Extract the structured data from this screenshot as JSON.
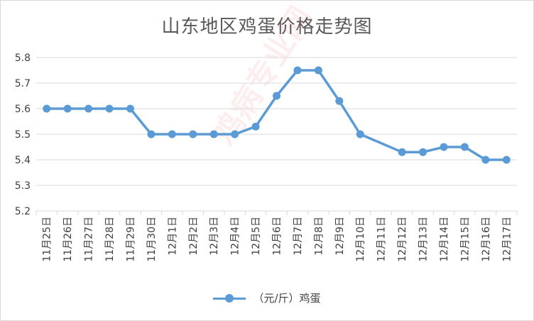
{
  "watermark": "鸡病专业网",
  "chart_data": {
    "type": "line",
    "title": "山东地区鸡蛋价格走势图",
    "categories": [
      "11月25日",
      "11月26日",
      "11月27日",
      "11月28日",
      "11月29日",
      "11月30日",
      "12月1日",
      "12月2日",
      "12月3日",
      "12月4日",
      "12月5日",
      "12月6日",
      "12月7日",
      "12月8日",
      "12月9日",
      "12月10日",
      "12月11日",
      "12月12日",
      "12月13日",
      "12月14日",
      "12月15日",
      "12月16日",
      "12月17日"
    ],
    "series": [
      {
        "name": "（元/斤）鸡蛋",
        "values": [
          5.6,
          5.6,
          5.6,
          5.6,
          5.6,
          5.5,
          5.5,
          5.5,
          5.5,
          5.5,
          5.53,
          5.65,
          5.75,
          5.75,
          5.63,
          5.5,
          null,
          5.43,
          5.43,
          5.45,
          5.45,
          5.4,
          5.4
        ]
      }
    ],
    "ylim": [
      5.2,
      5.8
    ],
    "yticks": [
      "5.2",
      "5.3",
      "5.4",
      "5.5",
      "5.6",
      "5.7",
      "5.8"
    ],
    "grid": true,
    "legend_position": "bottom",
    "colors": {
      "line": "#5b9bd5",
      "grid": "#d9d9d9",
      "text": "#404040"
    }
  }
}
